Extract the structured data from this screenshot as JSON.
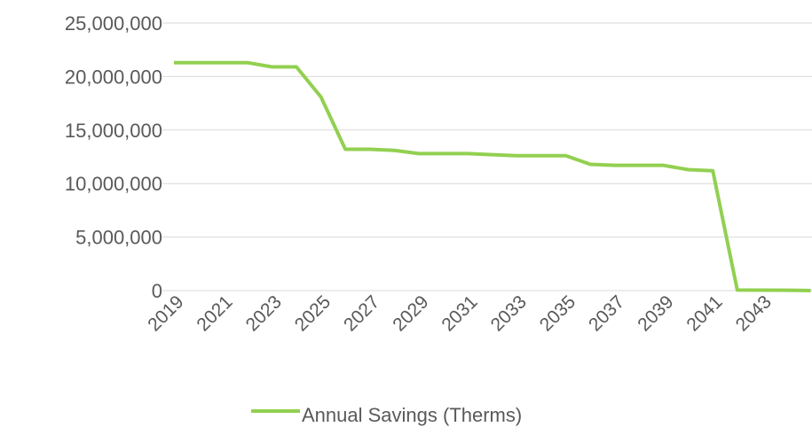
{
  "chart_data": {
    "type": "line",
    "categories": [
      "2019",
      null,
      "2021",
      null,
      "2023",
      null,
      "2025",
      null,
      "2027",
      null,
      "2029",
      null,
      "2031",
      null,
      "2033",
      null,
      "2035",
      null,
      "2037",
      null,
      "2039",
      null,
      "2041",
      null,
      "2043",
      null,
      null
    ],
    "series": [
      {
        "name": "Annual Savings (Therms)",
        "color": "#92d050",
        "values": [
          21300000,
          21300000,
          21300000,
          21300000,
          20900000,
          20900000,
          18100000,
          13200000,
          13200000,
          13100000,
          12800000,
          12800000,
          12800000,
          12700000,
          12600000,
          12600000,
          12600000,
          11800000,
          11700000,
          11700000,
          11700000,
          11300000,
          11200000,
          50000,
          40000,
          30000,
          0
        ]
      }
    ],
    "ylim": [
      0,
      25000000
    ],
    "yticks": [
      0,
      {
        "value": 5000000,
        "label": "5,000,000"
      },
      {
        "value": 10000000,
        "label": "10,000,000"
      },
      {
        "value": 15000000,
        "label": "15,000,000"
      },
      {
        "value": 20000000,
        "label": "20,000,000"
      },
      {
        "value": 25000000,
        "label": "25,000,000"
      }
    ],
    "grid": true,
    "legend": "bottom"
  }
}
